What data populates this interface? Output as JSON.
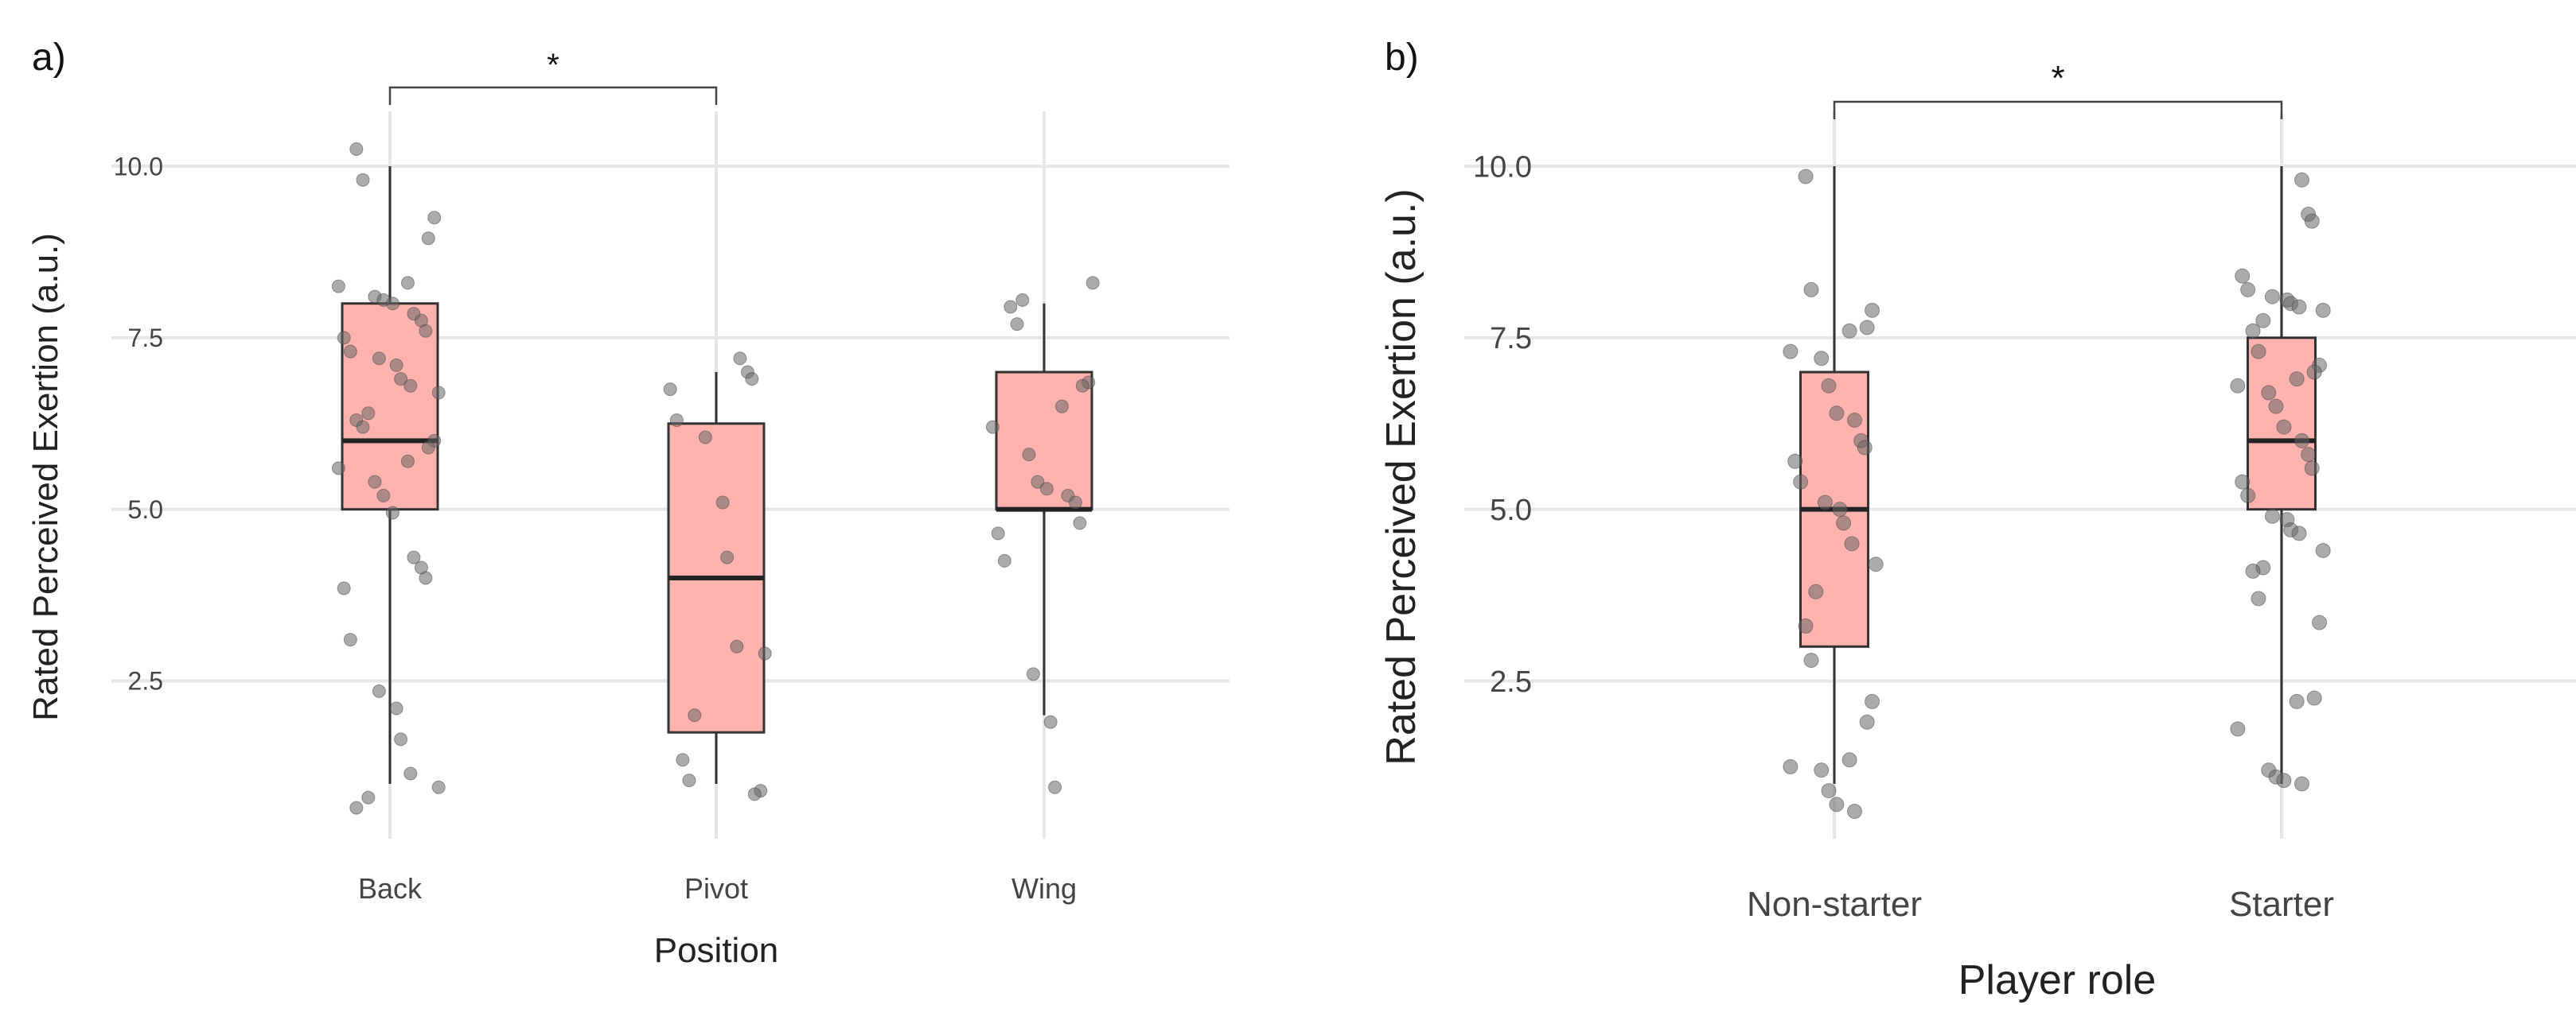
{
  "chart_data": [
    {
      "type": "box",
      "panel_label": "a)",
      "xlabel": "Position",
      "ylabel": "Rated Perceived Exertion (a.u.)",
      "yticks": [
        "2.5",
        "5.0",
        "7.5",
        "10.0"
      ],
      "ylim": [
        0.2,
        10.8
      ],
      "significance": {
        "from": "Back",
        "to": "Pivot",
        "label": "*"
      },
      "categories": [
        {
          "name": "Back",
          "whisker_low": 1.0,
          "q1": 5.0,
          "median": 6.0,
          "q3": 8.0,
          "whisker_high": 10.0,
          "points": [
            10.25,
            9.8,
            9.25,
            8.95,
            8.3,
            8.25,
            8.1,
            8.05,
            8.0,
            7.85,
            7.75,
            7.6,
            7.5,
            7.3,
            7.2,
            7.1,
            6.9,
            6.8,
            6.7,
            6.4,
            6.3,
            6.2,
            6.0,
            5.9,
            5.7,
            5.6,
            5.4,
            5.2,
            4.95,
            4.3,
            4.15,
            4.0,
            3.85,
            3.1,
            2.35,
            2.1,
            1.65,
            1.15,
            0.95,
            0.8,
            0.65
          ]
        },
        {
          "name": "Pivot",
          "whisker_low": 1.0,
          "q1": 1.75,
          "median": 4.0,
          "q3": 6.25,
          "whisker_high": 7.0,
          "points": [
            7.2,
            7.0,
            6.9,
            6.75,
            6.3,
            6.05,
            5.1,
            4.3,
            3.0,
            2.9,
            2.0,
            1.35,
            1.05,
            0.9,
            0.85
          ]
        },
        {
          "name": "Wing",
          "whisker_low": 2.0,
          "q1": 5.0,
          "median": 5.0,
          "q3": 7.0,
          "whisker_high": 8.0,
          "points": [
            8.3,
            8.05,
            7.95,
            7.7,
            6.85,
            6.8,
            6.5,
            6.2,
            5.8,
            5.4,
            5.3,
            5.2,
            5.1,
            4.8,
            4.65,
            4.25,
            2.6,
            1.9,
            0.95
          ]
        }
      ]
    },
    {
      "type": "box",
      "panel_label": "b)",
      "xlabel": "Player role",
      "ylabel": "Rated Perceived Exertion (a.u.)",
      "yticks": [
        "2.5",
        "5.0",
        "7.5",
        "10.0"
      ],
      "ylim": [
        0.2,
        10.8
      ],
      "significance": {
        "from": "Non-starter",
        "to": "Starter",
        "label": "*"
      },
      "categories": [
        {
          "name": "Non-starter",
          "whisker_low": 1.0,
          "q1": 3.0,
          "median": 5.0,
          "q3": 7.0,
          "whisker_high": 10.0,
          "points": [
            9.85,
            8.2,
            7.9,
            7.65,
            7.6,
            7.3,
            7.2,
            6.8,
            6.4,
            6.3,
            6.0,
            5.9,
            5.7,
            5.4,
            5.1,
            5.0,
            4.8,
            4.5,
            4.2,
            3.8,
            3.3,
            2.8,
            2.2,
            1.9,
            1.35,
            1.25,
            1.2,
            0.9,
            0.7,
            0.6
          ]
        },
        {
          "name": "Starter",
          "whisker_low": 1.0,
          "q1": 5.0,
          "median": 6.0,
          "q3": 7.5,
          "whisker_high": 10.0,
          "points": [
            9.8,
            9.3,
            9.2,
            8.4,
            8.2,
            8.1,
            8.05,
            8.0,
            7.95,
            7.9,
            7.75,
            7.6,
            7.3,
            7.1,
            7.0,
            6.9,
            6.8,
            6.7,
            6.5,
            6.2,
            6.0,
            5.8,
            5.6,
            5.4,
            5.2,
            4.9,
            4.85,
            4.7,
            4.65,
            4.4,
            4.15,
            4.1,
            3.7,
            3.35,
            2.25,
            2.2,
            1.8,
            1.2,
            1.1,
            1.05,
            1.0
          ]
        }
      ]
    }
  ]
}
